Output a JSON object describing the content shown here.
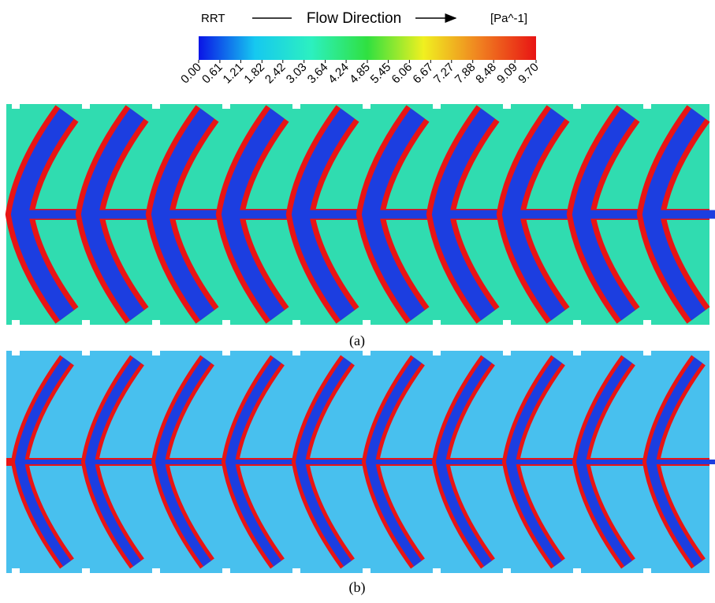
{
  "legend": {
    "title": "RRT",
    "direction": "Flow Direction",
    "unit": "[Pa^-1]",
    "colormap": [
      "#0a14e6",
      "#16c8f0",
      "#2cf0c0",
      "#30e040",
      "#f0f020",
      "#f08020",
      "#e81414"
    ],
    "clim": [
      0,
      9.7
    ],
    "ticks": [
      {
        "value": 0,
        "label": "0.00"
      },
      0.61,
      1.21,
      1.82,
      2.42,
      3.03,
      3.64,
      4.24,
      4.85,
      5.45,
      6.06,
      6.67,
      7.27,
      7.88,
      8.48,
      9.09,
      {
        "value": 9.7,
        "label": "9.70"
      }
    ]
  },
  "panels": [
    {
      "label": "(a)"
    },
    {
      "label": "(b)"
    }
  ]
}
